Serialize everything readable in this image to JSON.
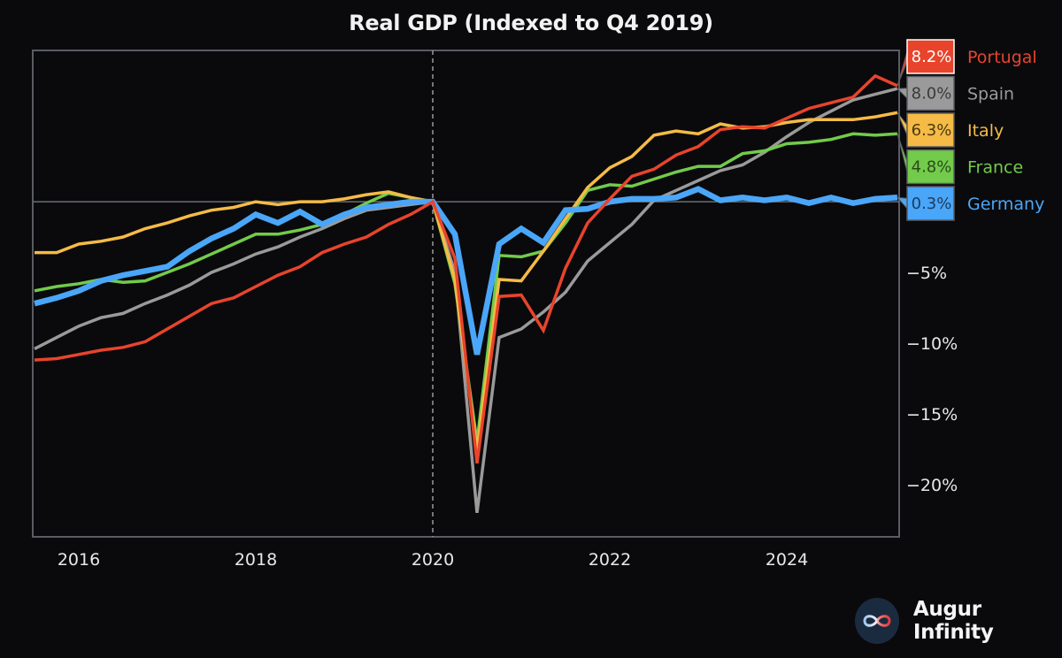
{
  "chart_data": {
    "type": "line",
    "title": "Real GDP (Indexed to Q4 2019)",
    "xlabel": "",
    "ylabel": "",
    "x_quarters": [
      "2015Q2",
      "2015Q3",
      "2015Q4",
      "2016Q1",
      "2016Q2",
      "2016Q3",
      "2016Q4",
      "2017Q1",
      "2017Q2",
      "2017Q3",
      "2017Q4",
      "2018Q1",
      "2018Q2",
      "2018Q3",
      "2018Q4",
      "2019Q1",
      "2019Q2",
      "2019Q3",
      "2019Q4",
      "2020Q1",
      "2020Q2",
      "2020Q3",
      "2020Q4",
      "2021Q1",
      "2021Q2",
      "2021Q3",
      "2021Q4",
      "2022Q1",
      "2022Q2",
      "2022Q3",
      "2022Q4",
      "2023Q1",
      "2023Q2",
      "2023Q3",
      "2023Q4",
      "2024Q1",
      "2024Q2",
      "2024Q3",
      "2024Q4",
      "2025Q1"
    ],
    "x_ticks": [
      "2016",
      "2018",
      "2020",
      "2022",
      "2024"
    ],
    "x_tick_years": [
      2016,
      2018,
      2020,
      2022,
      2024
    ],
    "y_ticks": [
      {
        "value": -5,
        "label": "−5%"
      },
      {
        "value": -10,
        "label": "−10%"
      },
      {
        "value": -15,
        "label": "−15%"
      },
      {
        "value": -20,
        "label": "−20%"
      }
    ],
    "ylim": [
      -23.7,
      10.7
    ],
    "reference_line_y": 0,
    "reference_line_x": "2019Q4",
    "grid": false,
    "legend": "right (end-of-line labels)",
    "series": [
      {
        "name": "Portugal",
        "color": "#e8442c",
        "end_label": "8.2%",
        "values": [
          -11.2,
          -11.1,
          -10.8,
          -10.5,
          -10.3,
          -9.9,
          -9.0,
          -8.1,
          -7.2,
          -6.8,
          -6.0,
          -5.2,
          -4.6,
          -3.6,
          -3.0,
          -2.5,
          -1.6,
          -0.9,
          0.0,
          -4.0,
          -18.5,
          -6.7,
          -6.6,
          -9.1,
          -4.7,
          -1.5,
          0.2,
          1.8,
          2.3,
          3.3,
          3.9,
          5.1,
          5.3,
          5.2,
          5.9,
          6.6,
          7.0,
          7.4,
          8.9,
          8.2
        ]
      },
      {
        "name": "Spain",
        "color": "#9a9a9a",
        "end_label": "8.0%",
        "values": [
          -10.4,
          -9.6,
          -8.8,
          -8.2,
          -7.9,
          -7.2,
          -6.6,
          -5.9,
          -5.0,
          -4.4,
          -3.7,
          -3.2,
          -2.5,
          -1.9,
          -1.2,
          -0.6,
          -0.4,
          -0.2,
          0.0,
          -5.0,
          -22.0,
          -9.6,
          -9.0,
          -7.8,
          -6.4,
          -4.2,
          -2.9,
          -1.6,
          0.1,
          0.8,
          1.5,
          2.2,
          2.6,
          3.5,
          4.6,
          5.6,
          6.4,
          7.2,
          7.6,
          8.0
        ]
      },
      {
        "name": "Italy",
        "color": "#f5bb46",
        "end_label": "6.3%",
        "values": [
          -3.6,
          -3.6,
          -3.0,
          -2.8,
          -2.5,
          -1.9,
          -1.5,
          -1.0,
          -0.6,
          -0.4,
          0.0,
          -0.2,
          0.0,
          0.0,
          0.2,
          0.5,
          0.7,
          0.3,
          0.0,
          -5.5,
          -17.6,
          -5.5,
          -5.6,
          -3.5,
          -1.2,
          1.0,
          2.4,
          3.2,
          4.7,
          5.0,
          4.8,
          5.5,
          5.2,
          5.3,
          5.6,
          5.8,
          5.8,
          5.8,
          6.0,
          6.3
        ]
      },
      {
        "name": "France",
        "color": "#72cb4a",
        "end_label": "4.8%",
        "values": [
          -6.3,
          -6.0,
          -5.8,
          -5.5,
          -5.7,
          -5.6,
          -5.0,
          -4.4,
          -3.7,
          -3.0,
          -2.3,
          -2.3,
          -2.0,
          -1.6,
          -0.9,
          -0.1,
          0.6,
          0.3,
          0.0,
          -5.8,
          -17.0,
          -3.8,
          -3.9,
          -3.5,
          -1.5,
          0.8,
          1.2,
          1.1,
          1.6,
          2.1,
          2.5,
          2.5,
          3.4,
          3.6,
          4.1,
          4.2,
          4.4,
          4.8,
          4.7,
          4.8
        ]
      },
      {
        "name": "Germany",
        "color": "#4aa6f8",
        "end_label": "0.3%",
        "values": [
          -7.2,
          -6.8,
          -6.3,
          -5.6,
          -5.2,
          -4.9,
          -4.6,
          -3.5,
          -2.6,
          -1.9,
          -0.9,
          -1.5,
          -0.7,
          -1.6,
          -0.9,
          -0.4,
          -0.2,
          0.0,
          0.0,
          -2.3,
          -10.8,
          -3.0,
          -1.9,
          -2.9,
          -0.6,
          -0.5,
          0.0,
          0.2,
          0.2,
          0.3,
          0.9,
          0.1,
          0.3,
          0.1,
          0.3,
          -0.1,
          0.3,
          -0.1,
          0.2,
          0.3
        ]
      }
    ]
  },
  "branding": {
    "logo_icon": "infinity-icon",
    "name": "Augur Infinity"
  }
}
